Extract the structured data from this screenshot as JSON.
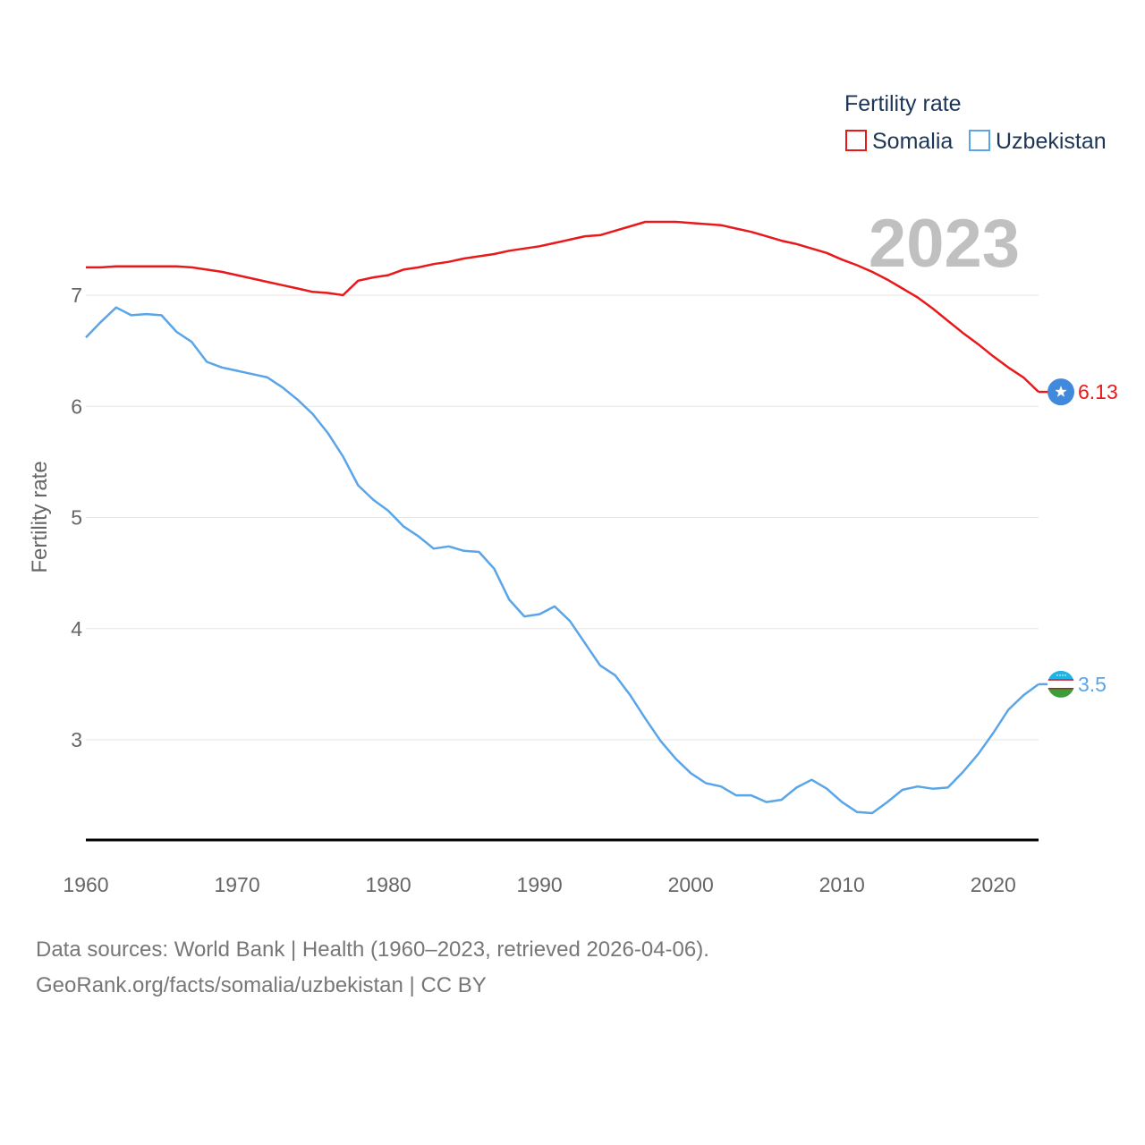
{
  "chart_data": {
    "type": "line",
    "title": "Fertility rate",
    "legend_title": "Fertility rate",
    "ylabel": "Fertility rate",
    "xlabel": "",
    "year_label": "2023",
    "xlim": [
      1960,
      2023
    ],
    "ylim": [
      2.1,
      7.7
    ],
    "x_ticks": [
      1960,
      1970,
      1980,
      1990,
      2000,
      2010,
      2020
    ],
    "y_ticks": [
      3,
      4,
      5,
      6,
      7
    ],
    "series": [
      {
        "name": "Somalia",
        "color": "#e8191b",
        "end_label": "6.13",
        "flag_icon": "somalia-flag-icon",
        "x": [
          1960,
          1961,
          1962,
          1963,
          1964,
          1965,
          1966,
          1967,
          1968,
          1969,
          1970,
          1971,
          1972,
          1973,
          1974,
          1975,
          1976,
          1977,
          1978,
          1979,
          1980,
          1981,
          1982,
          1983,
          1984,
          1985,
          1986,
          1987,
          1988,
          1989,
          1990,
          1991,
          1992,
          1993,
          1994,
          1995,
          1996,
          1997,
          1998,
          1999,
          2000,
          2001,
          2002,
          2003,
          2004,
          2005,
          2006,
          2007,
          2008,
          2009,
          2010,
          2011,
          2012,
          2013,
          2014,
          2015,
          2016,
          2017,
          2018,
          2019,
          2020,
          2021,
          2022,
          2023
        ],
        "values": [
          7.25,
          7.25,
          7.26,
          7.26,
          7.26,
          7.26,
          7.26,
          7.25,
          7.23,
          7.21,
          7.18,
          7.15,
          7.12,
          7.09,
          7.06,
          7.03,
          7.02,
          7.0,
          7.13,
          7.16,
          7.18,
          7.23,
          7.25,
          7.28,
          7.3,
          7.33,
          7.35,
          7.37,
          7.4,
          7.42,
          7.44,
          7.47,
          7.5,
          7.53,
          7.54,
          7.58,
          7.62,
          7.66,
          7.66,
          7.66,
          7.65,
          7.64,
          7.63,
          7.6,
          7.57,
          7.53,
          7.49,
          7.46,
          7.42,
          7.38,
          7.32,
          7.27,
          7.21,
          7.14,
          7.06,
          6.98,
          6.88,
          6.77,
          6.66,
          6.56,
          6.45,
          6.35,
          6.26,
          6.13
        ]
      },
      {
        "name": "Uzbekistan",
        "color": "#5aa5e8",
        "end_label": "3.5",
        "flag_icon": "uzbekistan-flag-icon",
        "x": [
          1960,
          1961,
          1962,
          1963,
          1964,
          1965,
          1966,
          1967,
          1968,
          1969,
          1970,
          1971,
          1972,
          1973,
          1974,
          1975,
          1976,
          1977,
          1978,
          1979,
          1980,
          1981,
          1982,
          1983,
          1984,
          1985,
          1986,
          1987,
          1988,
          1989,
          1990,
          1991,
          1992,
          1993,
          1994,
          1995,
          1996,
          1997,
          1998,
          1999,
          2000,
          2001,
          2002,
          2003,
          2004,
          2005,
          2006,
          2007,
          2008,
          2009,
          2010,
          2011,
          2012,
          2013,
          2014,
          2015,
          2016,
          2017,
          2018,
          2019,
          2020,
          2021,
          2022,
          2023
        ],
        "values": [
          6.62,
          6.76,
          6.89,
          6.82,
          6.83,
          6.82,
          6.67,
          6.58,
          6.4,
          6.35,
          6.32,
          6.29,
          6.26,
          6.17,
          6.06,
          5.93,
          5.76,
          5.55,
          5.29,
          5.16,
          5.06,
          4.92,
          4.83,
          4.72,
          4.74,
          4.7,
          4.69,
          4.54,
          4.26,
          4.11,
          4.13,
          4.2,
          4.07,
          3.87,
          3.67,
          3.58,
          3.4,
          3.19,
          2.99,
          2.83,
          2.7,
          2.61,
          2.58,
          2.5,
          2.5,
          2.44,
          2.46,
          2.57,
          2.64,
          2.56,
          2.44,
          2.35,
          2.34,
          2.44,
          2.55,
          2.58,
          2.56,
          2.57,
          2.71,
          2.87,
          3.06,
          3.27,
          3.4,
          3.5
        ]
      }
    ]
  },
  "footer": {
    "line1": "Data sources: World Bank | Health (1960–2023, retrieved 2026-04-06).",
    "line2": "GeoRank.org/facts/somalia/uzbekistan | CC BY"
  }
}
